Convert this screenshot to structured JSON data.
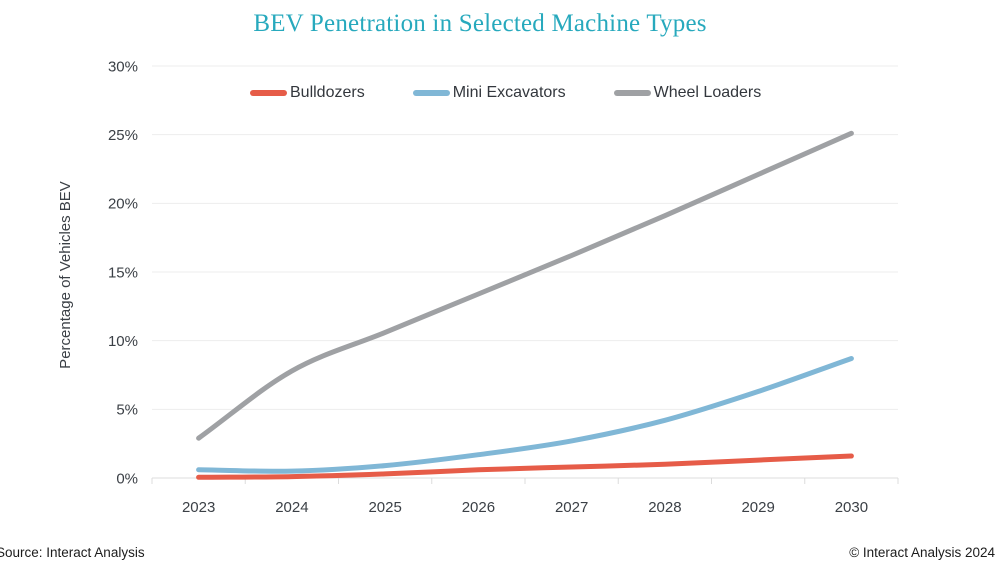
{
  "title": "BEV Penetration in Selected Machine Types",
  "footer": {
    "source": "Source: Interact Analysis",
    "copyright": "© Interact Analysis 2024"
  },
  "colors": {
    "title_accent": "#27a9bd",
    "bulldozers": "#e65c48",
    "mini_excavators": "#80b7d6",
    "wheel_loaders": "#9fa1a4",
    "axis_text": "#3b4046",
    "gridline": "#ededed",
    "axis_line": "#dcdcdc"
  },
  "chart_data": {
    "type": "line",
    "title": "BEV Penetration in Selected Machine Types",
    "categories": [
      "2023",
      "2024",
      "2025",
      "2026",
      "2027",
      "2028",
      "2029",
      "2030"
    ],
    "series": [
      {
        "name": "Bulldozers",
        "color": "#e65c48",
        "values": [
          0.05,
          0.1,
          0.3,
          0.6,
          0.8,
          1.0,
          1.3,
          1.6
        ]
      },
      {
        "name": "Mini Excavators",
        "color": "#80b7d6",
        "values": [
          0.6,
          0.5,
          0.9,
          1.7,
          2.7,
          4.2,
          6.3,
          8.7
        ]
      },
      {
        "name": "Wheel Loaders",
        "color": "#9fa1a4",
        "values": [
          2.9,
          7.8,
          10.6,
          13.4,
          16.2,
          19.1,
          22.1,
          25.1
        ]
      }
    ],
    "xlabel": "",
    "ylabel": "Percentage of Vehicles BEV",
    "ylim": [
      0,
      30
    ],
    "y_tick_labels": [
      "0%",
      "5%",
      "10%",
      "15%",
      "20%",
      "25%",
      "30%"
    ],
    "grid": true,
    "legend_position": "top"
  }
}
